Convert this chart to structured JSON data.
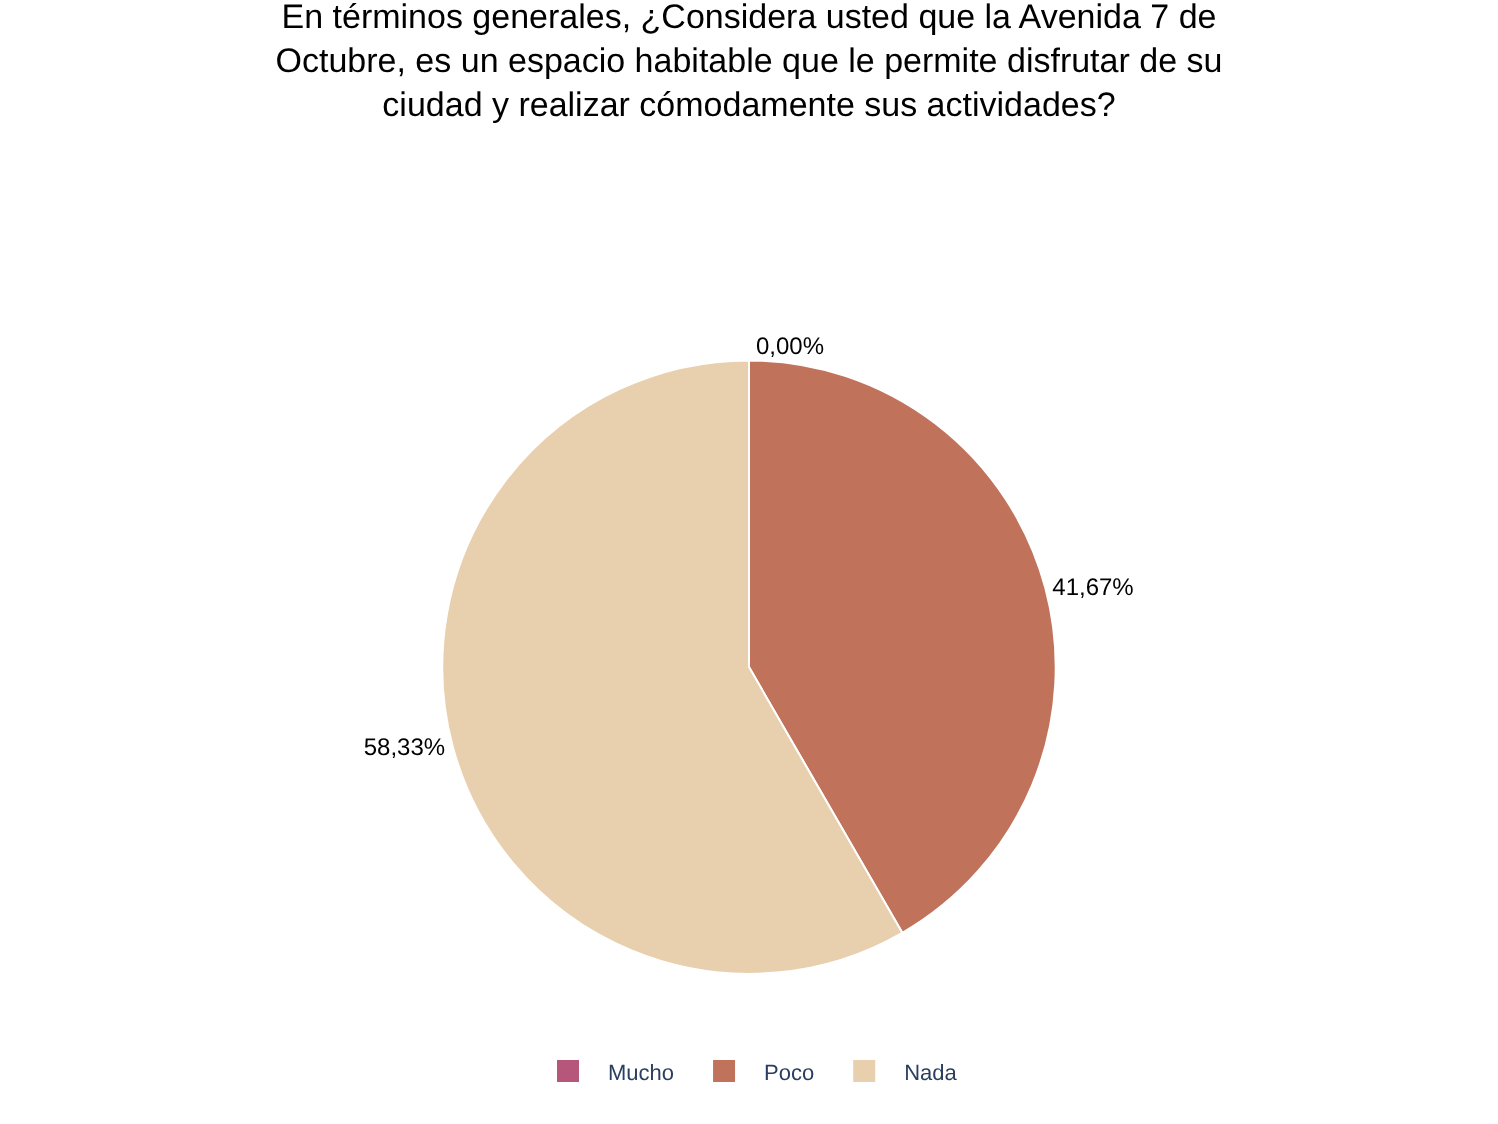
{
  "chart_data": {
    "type": "pie",
    "title": "En términos generales, ¿Considera usted que la Avenida 7 de\nOctubre, es un espacio habitable que le permite disfrutar de su\nciudad y realizar cómodamente sus actividades?",
    "categories": [
      "Mucho",
      "Poco",
      "Nada"
    ],
    "values": [
      0,
      41.67,
      58.33
    ],
    "value_labels": [
      "0,00%",
      "41,67%",
      "58,33%"
    ],
    "colors": [
      "#b5567a",
      "#c0735a",
      "#e8cfad"
    ],
    "legend": "bottom"
  }
}
